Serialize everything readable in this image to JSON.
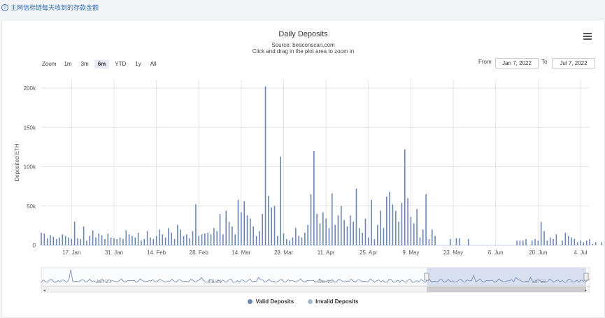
{
  "page": {
    "note": "主网信标链每天收到的存款金额"
  },
  "header": {
    "title": "Daily Deposits",
    "source": "Source: beaconscan.com",
    "hint": "Click and drag in the plot area to zoom in"
  },
  "zoom": {
    "label": "Zoom",
    "buttons": [
      "1m",
      "3m",
      "6m",
      "YTD",
      "1y",
      "All"
    ],
    "active": "6m"
  },
  "range": {
    "from_label": "From",
    "from_value": "Jan 7, 2022",
    "to_label": "To",
    "to_value": "Jul 7, 2022"
  },
  "colors": {
    "valid": "#6b86b3",
    "invalid": "#a9b8cf",
    "navigator_mask": "#cfd8eb",
    "grid": "#e6e6e6"
  },
  "legend": {
    "valid": "Valid Deposits",
    "invalid": "Invalid Deposits"
  },
  "navigator": {
    "labels": [
      "Jan '21",
      "Jul '21",
      "Jan '22",
      "Jul '22"
    ]
  },
  "chart_data": {
    "type": "bar",
    "title": "Daily Deposits",
    "subtitle": "Source: beaconscan.com",
    "ylabel": "Deposited ETH",
    "xlabel": "",
    "ylim": [
      0,
      200000
    ],
    "yticks": [
      0,
      50000,
      100000,
      150000,
      200000
    ],
    "ytick_labels": [
      "0",
      "50k",
      "100k",
      "150k",
      "200k"
    ],
    "x_start": "2022-01-07",
    "x_end": "2022-07-07",
    "xtick_labels": [
      "17. Jan",
      "31. Jan",
      "14. Feb",
      "28. Feb",
      "14. Mar",
      "28. Mar",
      "11. Apr",
      "25. Apr",
      "9. May",
      "23. May",
      "6. Jun",
      "20. Jun",
      "4. Jul"
    ],
    "xtick_dates": [
      "2022-01-17",
      "2022-01-31",
      "2022-02-14",
      "2022-02-28",
      "2022-03-14",
      "2022-03-28",
      "2022-04-11",
      "2022-04-25",
      "2022-05-09",
      "2022-05-23",
      "2022-06-06",
      "2022-06-20",
      "2022-07-04"
    ],
    "grid": true,
    "legend_position": "bottom",
    "series": [
      {
        "name": "Valid Deposits",
        "values": [
          16000,
          15000,
          9000,
          13000,
          11000,
          8000,
          10000,
          14000,
          12000,
          10000,
          8000,
          30000,
          9000,
          8000,
          24000,
          6000,
          12000,
          19000,
          10000,
          15000,
          13000,
          8000,
          15000,
          10000,
          9000,
          8000,
          10000,
          8000,
          19000,
          14000,
          12000,
          10000,
          16000,
          6000,
          8000,
          18000,
          10000,
          8000,
          12000,
          20000,
          14000,
          10000,
          22000,
          16000,
          8000,
          26000,
          20000,
          12000,
          14000,
          9000,
          18000,
          52000,
          12000,
          14000,
          15000,
          16000,
          14000,
          22000,
          18000,
          40000,
          14000,
          44000,
          30000,
          24000,
          14000,
          58000,
          42000,
          56000,
          38000,
          34000,
          24000,
          12000,
          18000,
          40000,
          202000,
          63000,
          48000,
          50000,
          12000,
          113000,
          15000,
          8000,
          6000,
          10000,
          22000,
          12000,
          10000,
          16000,
          26000,
          65000,
          120000,
          40000,
          28000,
          42000,
          34000,
          22000,
          66000,
          26000,
          38000,
          50000,
          32000,
          24000,
          38000,
          30000,
          72000,
          22000,
          16000,
          34000,
          10000,
          58000,
          8000,
          26000,
          44000,
          22000,
          62000,
          68000,
          52000,
          44000,
          30000,
          54000,
          122000,
          60000,
          36000,
          28000,
          46000,
          10000,
          20000,
          65000,
          8000,
          20000,
          12000,
          0,
          0,
          0,
          0,
          8000,
          0,
          9000,
          9000,
          0,
          0,
          8000,
          0,
          0,
          0,
          0,
          0,
          0,
          0,
          0,
          0,
          0,
          0,
          0,
          0,
          0,
          0,
          6000,
          6000,
          6000,
          8000,
          0,
          6000,
          8000,
          6000,
          30000,
          18000,
          6000,
          10000,
          8000,
          14000,
          0,
          6000,
          16000,
          12000,
          10000,
          8000,
          4000,
          6000,
          4000,
          6000,
          8000,
          2000,
          4000,
          0,
          4000,
          4000,
          6000,
          2000,
          6000
        ]
      },
      {
        "name": "Invalid Deposits",
        "values": []
      }
    ]
  }
}
